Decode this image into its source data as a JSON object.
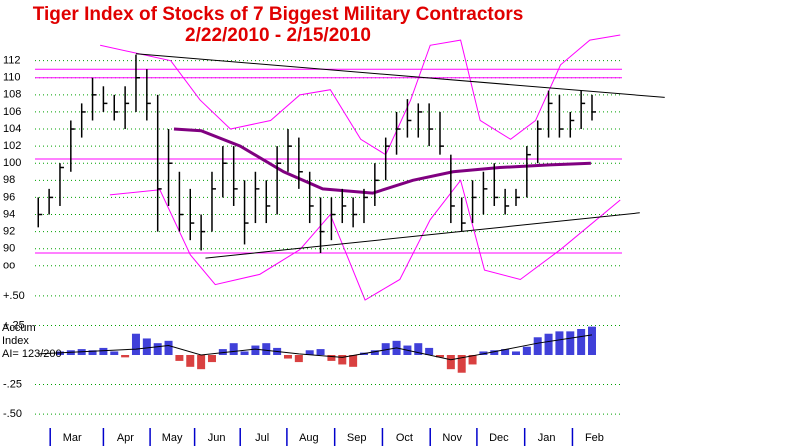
{
  "chart_data": [
    {
      "type": "ohlc",
      "title": "Tiger Index of Stocks of 7 Biggest Military Contractors",
      "subtitle": "2/22/2010 - 2/15/2010",
      "x": [
        0,
        1,
        2,
        3,
        4,
        5,
        6,
        7,
        8,
        9,
        10,
        11,
        12,
        13,
        14,
        15,
        16,
        17,
        18,
        19,
        20,
        21,
        22,
        23,
        24,
        25,
        26,
        27,
        28,
        29,
        30,
        31,
        32,
        33,
        34,
        35,
        36,
        37,
        38,
        39,
        40,
        41,
        42,
        43,
        44,
        45,
        46,
        47,
        48,
        49,
        50,
        51
      ],
      "high": [
        96,
        97,
        100,
        105,
        107,
        110,
        109,
        108,
        109,
        112.7,
        111,
        108,
        104,
        99,
        97,
        94,
        99,
        102,
        102,
        98,
        99,
        98,
        102,
        104,
        103,
        99,
        96,
        96,
        97,
        96,
        97,
        100,
        103,
        106,
        107.5,
        107,
        107,
        106,
        101,
        96,
        98,
        99,
        100,
        97,
        97,
        102,
        105,
        108.5,
        108,
        106,
        108.5,
        108
      ],
      "low": [
        92.5,
        94,
        95,
        99,
        103,
        105,
        106,
        105,
        104,
        106,
        105,
        92,
        95,
        92,
        91,
        89.8,
        92,
        96,
        95,
        90.5,
        93,
        93,
        94,
        99,
        97,
        93,
        89.5,
        91,
        93,
        92.5,
        93,
        95,
        98,
        101,
        103,
        103,
        102,
        101,
        93,
        92,
        93,
        94,
        95,
        94,
        95,
        96,
        100,
        103,
        103,
        103,
        104,
        105
      ],
      "close": [
        94,
        96,
        99.5,
        104,
        106,
        108,
        107,
        106,
        107,
        110,
        107,
        97,
        100,
        94,
        93,
        92,
        97,
        100,
        97,
        93,
        97,
        95,
        100,
        102,
        99,
        95,
        92,
        94,
        95,
        94,
        96,
        98,
        102,
        104,
        105,
        106,
        104,
        102,
        95,
        93,
        96,
        97,
        96,
        95,
        96,
        101,
        104,
        107,
        104,
        105,
        107,
        106
      ],
      "bar_color": "#000000",
      "lines": [
        {
          "x": [
            12.5,
            15,
            18.6,
            22.6,
            26.2,
            30.8,
            34.5,
            38.2,
            42.5,
            47.1,
            50.9
          ],
          "values": [
            104,
            103.8,
            102,
            99,
            97,
            96.5,
            98,
            99,
            99.5,
            99.8,
            100
          ],
          "color": "#800080",
          "width": 3
        },
        {
          "x": [
            5.7,
            12.2,
            14.9,
            17.7,
            21.4,
            24.1,
            26.9,
            29.7,
            32,
            34.3,
            36.1,
            38.9,
            40.7,
            43.5,
            45.8,
            48.1,
            50.8,
            53.6
          ],
          "values": [
            113.8,
            112,
            107.4,
            104,
            105,
            108,
            108.6,
            102.8,
            101,
            107.4,
            113.8,
            114.4,
            105,
            102.8,
            105,
            111.5,
            114.4,
            115
          ],
          "color": "#ff00ff",
          "width": 1
        },
        {
          "x": [
            6.6,
            11.2,
            14,
            16.3,
            20.4,
            24.1,
            26.9,
            30.1,
            33.3,
            36.1,
            38.9,
            41.1,
            44.4,
            48.1,
            53.6
          ],
          "values": [
            96.3,
            96.9,
            89.3,
            85.8,
            87,
            89.9,
            94,
            84,
            86.4,
            93.4,
            98,
            87.5,
            86.4,
            89.9,
            95.7
          ],
          "color": "#ff00ff",
          "width": 1
        },
        {
          "x": [
            9,
            57.7
          ],
          "values": [
            112.8,
            107.7
          ],
          "color": "#000000",
          "width": 1
        },
        {
          "x": [
            15.4,
            55.4
          ],
          "values": [
            88.9,
            94.2
          ],
          "color": "#000000",
          "width": 1
        }
      ],
      "hlines": [
        111,
        110,
        100.5,
        89.5
      ],
      "hline_color": "#ff00ff",
      "xlim": [
        -0.3,
        58
      ],
      "ylim": [
        84,
        115
      ],
      "yticks": [
        {
          "value": 88,
          "label": "oo"
        },
        90,
        92,
        94,
        96,
        98,
        100,
        102,
        104,
        106,
        108,
        110,
        112
      ],
      "grid": true,
      "grid_color": "#00a000"
    },
    {
      "type": "bar",
      "label": [
        "Accum",
        "Index",
        "AI= 123/200"
      ],
      "x": [
        0,
        1,
        2,
        3,
        4,
        5,
        6,
        7,
        8,
        9,
        10,
        11,
        12,
        13,
        14,
        15,
        16,
        17,
        18,
        19,
        20,
        21,
        22,
        23,
        24,
        25,
        26,
        27,
        28,
        29,
        30,
        31,
        32,
        33,
        34,
        35,
        36,
        37,
        38,
        39,
        40,
        41,
        42,
        43,
        44,
        45,
        46,
        47,
        48,
        49,
        50,
        51
      ],
      "values": [
        0,
        0,
        0.03,
        0.04,
        0.05,
        0.04,
        0.06,
        0.03,
        -0.02,
        0.18,
        0.14,
        0.1,
        0.12,
        -0.05,
        -0.1,
        -0.12,
        -0.06,
        0.05,
        0.1,
        0.03,
        0.08,
        0.1,
        0.06,
        -0.03,
        -0.06,
        0.04,
        0.05,
        -0.05,
        -0.08,
        -0.1,
        0.02,
        0.04,
        0.1,
        0.12,
        0.08,
        0.1,
        0.06,
        -0.02,
        -0.12,
        -0.15,
        -0.08,
        0.03,
        0.04,
        0.05,
        0.03,
        0.07,
        0.15,
        0.18,
        0.2,
        0.2,
        0.22,
        0.24
      ],
      "positive_color": "#0000cc",
      "negative_color": "#cc0000",
      "lines": [
        {
          "x": [
            0,
            9,
            12,
            15,
            20,
            24,
            28,
            33,
            38,
            41,
            46,
            51
          ],
          "values": [
            0.01,
            0.05,
            0.08,
            0,
            0.05,
            0.01,
            -0.02,
            0.06,
            -0.04,
            0.01,
            0.1,
            0.17
          ],
          "color": "#000000",
          "width": 1
        }
      ],
      "xlim": [
        -0.3,
        58
      ],
      "ylim": [
        -0.55,
        0.55
      ],
      "yticks": [
        {
          "value": -0.5,
          "label": "-.50"
        },
        {
          "value": -0.25,
          "label": "-.25"
        },
        {
          "value": 0.25,
          "label": "+.25"
        },
        {
          "value": 0.5,
          "label": "+.50"
        }
      ],
      "grid": true,
      "grid_color": "#00a000",
      "xticks": [
        {
          "value": 1.1,
          "label": "Mar"
        },
        {
          "value": 6,
          "label": "Apr"
        },
        {
          "value": 10.3,
          "label": "May"
        },
        {
          "value": 14.4,
          "label": "Jun"
        },
        {
          "value": 18.6,
          "label": "Jul"
        },
        {
          "value": 22.9,
          "label": "Aug"
        },
        {
          "value": 27.3,
          "label": "Sep"
        },
        {
          "value": 31.7,
          "label": "Oct"
        },
        {
          "value": 36.1,
          "label": "Nov"
        },
        {
          "value": 40.4,
          "label": "Dec"
        },
        {
          "value": 44.8,
          "label": "Jan"
        },
        {
          "value": 49.2,
          "label": "Feb"
        }
      ],
      "xtick_color": "#0000cc"
    }
  ]
}
